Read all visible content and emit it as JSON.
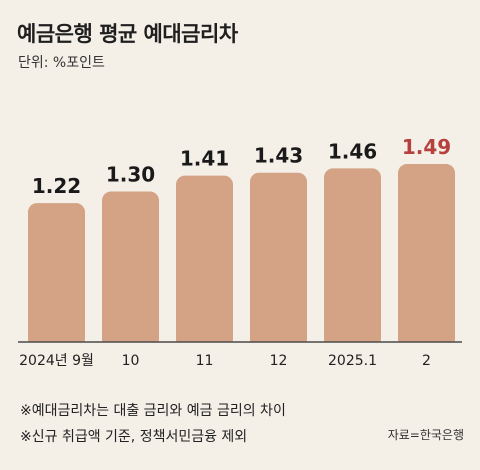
{
  "title": "예금은행 평균 예대금리차",
  "unit_label": "단위: %포인트",
  "chart_data": {
    "type": "bar",
    "categories": [
      "2024년 9월",
      "10",
      "11",
      "12",
      "2025.1",
      "2"
    ],
    "values": [
      1.22,
      1.3,
      1.41,
      1.43,
      1.46,
      1.49
    ],
    "value_labels": [
      "1.22",
      "1.30",
      "1.41",
      "1.43",
      "1.46",
      "1.49"
    ],
    "highlight_index": 5,
    "colors": {
      "bar": "#d4a285",
      "label": "#1a1a1a",
      "highlight_label": "#b5403d"
    }
  },
  "notes": [
    "※예대금리차는 대출 금리와 예금 금리의 차이",
    "※신규 취급액 기준, 정책서민금융 제외"
  ],
  "source": "자료=한국은행"
}
